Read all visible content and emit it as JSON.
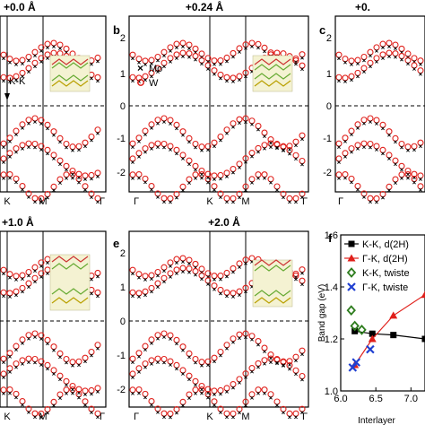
{
  "panels": [
    {
      "id": "a",
      "label": "",
      "title": "+0.0 Å",
      "k_label": "K-K",
      "ylabels": [
        "",
        "",
        "",
        "",
        ""
      ],
      "xticks": [
        "K",
        "M",
        "Γ"
      ]
    },
    {
      "id": "b",
      "label": "b",
      "title": "+0.24 Å",
      "ylabels": [
        "2",
        "1",
        "0",
        "-1",
        "-2"
      ],
      "xticks": [
        "Γ",
        "K",
        "M",
        "Γ"
      ]
    },
    {
      "id": "c",
      "label": "c",
      "title": "+0.",
      "ylabels": [
        "2",
        "1",
        "0",
        "-1",
        "-2"
      ],
      "xticks": [
        "Γ"
      ]
    },
    {
      "id": "d",
      "label": "",
      "title": "+1.0 Å",
      "ylabels": [
        "",
        "",
        "",
        "",
        ""
      ],
      "xticks": [
        "K",
        "M",
        "Γ"
      ]
    },
    {
      "id": "e",
      "label": "e",
      "title": "+2.0 Å",
      "ylabels": [
        "2",
        "1",
        "0",
        "-1",
        "-2"
      ],
      "xticks": [
        "Γ",
        "K",
        "M",
        "Γ"
      ]
    }
  ],
  "band_legend": [
    {
      "symbol": "×",
      "name": "Mo",
      "color": "#000000"
    },
    {
      "symbol": "o",
      "name": "W",
      "color": "#e0201b"
    }
  ],
  "chart_data": {
    "type": "line",
    "panel_label": "f",
    "xlabel": "Interlayer",
    "ylabel": "Band gap (eV)",
    "xlim": [
      6.0,
      7.2
    ],
    "ylim": [
      1.0,
      1.6
    ],
    "xticks": [
      "6.0",
      "6.5",
      "7.0"
    ],
    "yticks": [
      "1.0",
      "1.2",
      "1.4",
      "1.6"
    ],
    "series": [
      {
        "name": "K-K, d(2H)",
        "marker": "square",
        "color": "#000000",
        "x": [
          6.2,
          6.45,
          6.75,
          7.2
        ],
        "y": [
          1.23,
          1.22,
          1.215,
          1.2
        ]
      },
      {
        "name": "Γ-K, d(2H)",
        "marker": "triangle",
        "color": "#e0201b",
        "x": [
          6.2,
          6.45,
          6.75,
          7.2
        ],
        "y": [
          1.1,
          1.2,
          1.29,
          1.37
        ]
      },
      {
        "name": "K-K, twiste",
        "marker": "diamond",
        "color": "#2e7d1e",
        "x": [
          6.15,
          6.2,
          6.3
        ],
        "y": [
          1.31,
          1.25,
          1.235
        ]
      },
      {
        "name": "Γ-K, twiste",
        "marker": "x",
        "color": "#1f3fd1",
        "x": [
          6.17,
          6.22,
          6.42
        ],
        "y": [
          1.09,
          1.11,
          1.16
        ]
      }
    ]
  }
}
